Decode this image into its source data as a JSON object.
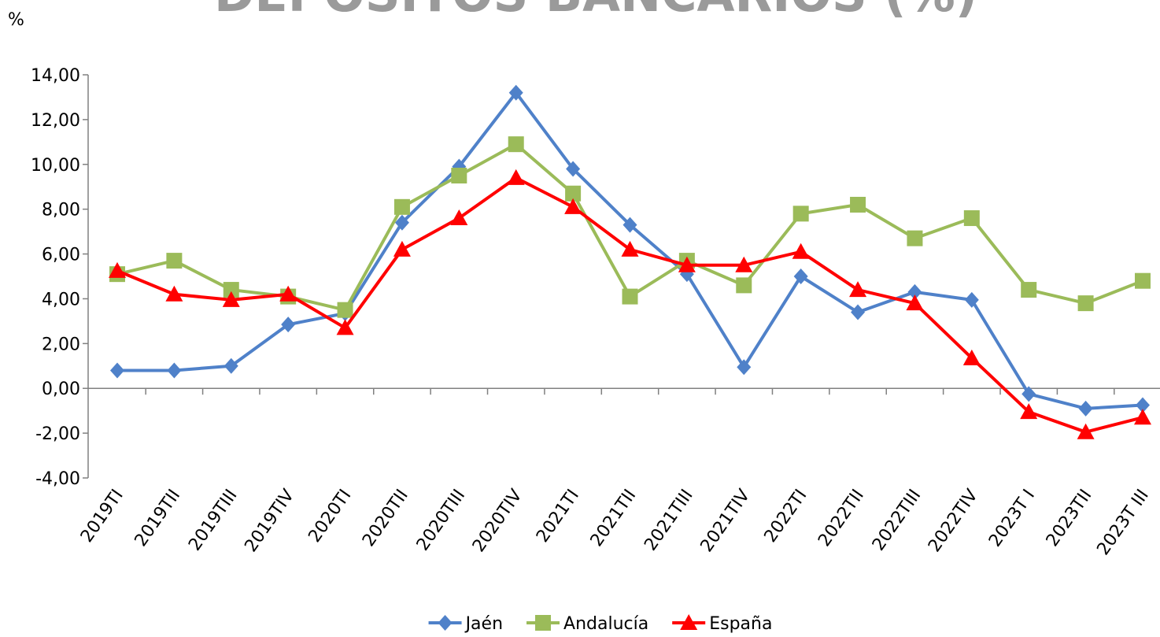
{
  "chart_data": {
    "type": "line",
    "title": "DEPÓSITOS BANCARIOS (%)",
    "y_label": "%",
    "categories": [
      "2019TI",
      "2019TII",
      "2019TIII",
      "2019TIV",
      "2020TI",
      "2020TII",
      "2020TIII",
      "2020TIV",
      "2021TI",
      "2021TII",
      "2021TIII",
      "2021TIV",
      "2022TI",
      "2022TII",
      "2022TIII",
      "2022TIV",
      "2023T I",
      "2023TII",
      "2023T III"
    ],
    "series": [
      {
        "name": "Jaén",
        "color": "#4f81c9",
        "marker": "diamond",
        "values": [
          0.8,
          0.8,
          1.0,
          2.85,
          3.35,
          7.4,
          9.9,
          13.2,
          9.8,
          7.3,
          5.1,
          0.95,
          5.0,
          3.4,
          4.3,
          3.95,
          -0.25,
          -0.9,
          -0.75
        ]
      },
      {
        "name": "Andalucía",
        "color": "#9bbb59",
        "marker": "square",
        "values": [
          5.1,
          5.7,
          4.4,
          4.1,
          3.5,
          8.1,
          9.5,
          10.9,
          8.7,
          4.1,
          5.7,
          4.6,
          7.8,
          8.2,
          6.7,
          7.6,
          4.4,
          3.8,
          4.8
        ]
      },
      {
        "name": "España",
        "color": "#ff0000",
        "marker": "triangle",
        "values": [
          5.25,
          4.2,
          3.95,
          4.2,
          2.7,
          6.2,
          7.6,
          9.4,
          8.1,
          6.2,
          5.5,
          5.5,
          6.1,
          4.4,
          3.8,
          1.35,
          -1.05,
          -1.95,
          -1.3
        ]
      }
    ],
    "ylim": [
      -4,
      14
    ],
    "yticks": [
      {
        "value": -4,
        "label": "-4,00"
      },
      {
        "value": -2,
        "label": "-2,00"
      },
      {
        "value": 0,
        "label": "0,00"
      },
      {
        "value": 2,
        "label": "2,00"
      },
      {
        "value": 4,
        "label": "4,00"
      },
      {
        "value": 6,
        "label": "6,00"
      },
      {
        "value": 8,
        "label": "8,00"
      },
      {
        "value": 10,
        "label": "10,00"
      },
      {
        "value": 12,
        "label": "12,00"
      },
      {
        "value": 14,
        "label": "14,00"
      }
    ],
    "grid": false,
    "legend": "bottom"
  }
}
